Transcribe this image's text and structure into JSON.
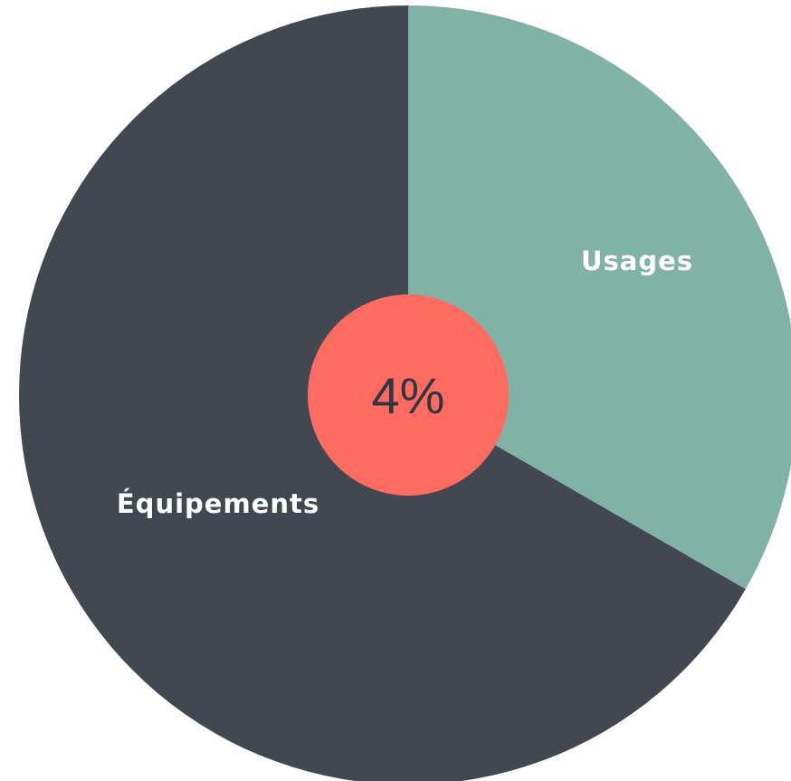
{
  "chart_data": {
    "type": "pie",
    "categories": [
      "Usages",
      "Équipements"
    ],
    "values": [
      33.3,
      66.7
    ],
    "colors": [
      "#80b3a6",
      "#414852"
    ],
    "start": "top",
    "direction": "clockwise",
    "center_badge": {
      "text": "4%",
      "color": "#ff6a61"
    }
  }
}
